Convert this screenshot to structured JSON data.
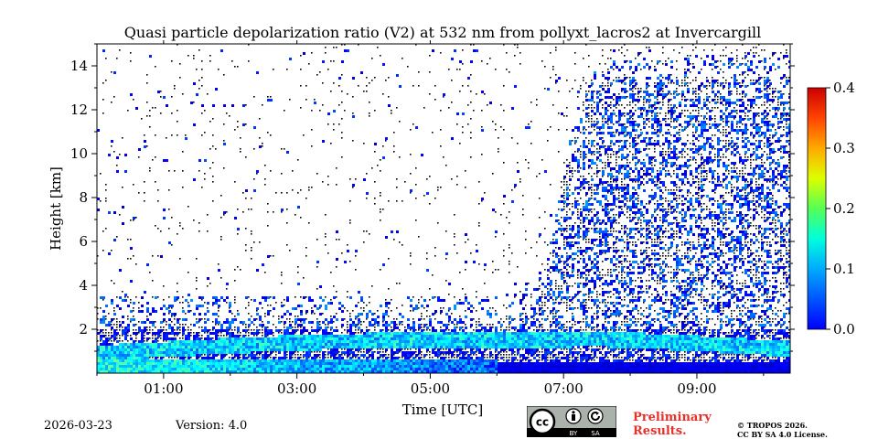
{
  "footer": {
    "date": "2026-03-23",
    "version": "Version: 4.0",
    "preliminary_line1": "Preliminary",
    "preliminary_line2": "Results.",
    "copyright_line1": "© TROPOS 2026.",
    "copyright_line2": "CC BY SA 4.0 License.",
    "cc_label_by": "BY",
    "cc_label_sa": "SA",
    "cc_label_cc": "cc"
  },
  "chart_data": {
    "type": "heatmap",
    "title": "Quasi particle depolarization ratio (V2) at 532 nm from pollyxt_lacros2 at Invercargill",
    "xlabel": "Time [UTC]",
    "ylabel": "Height [km]",
    "xlim": [
      0.0,
      10.4
    ],
    "ylim": [
      0.0,
      15.0
    ],
    "xticks": [
      1,
      3,
      5,
      7,
      9
    ],
    "xtick_labels": [
      "01:00",
      "03:00",
      "05:00",
      "07:00",
      "09:00"
    ],
    "yticks": [
      2,
      4,
      6,
      8,
      10,
      12,
      14
    ],
    "ytick_labels": [
      "2",
      "4",
      "6",
      "8",
      "10",
      "12",
      "14"
    ],
    "colorbar": {
      "range": [
        0.0,
        0.4
      ],
      "ticks": [
        0.0,
        0.1,
        0.2,
        0.3,
        0.4
      ],
      "tick_labels": [
        "0.0",
        "0.1",
        "0.2",
        "0.3",
        "0.4"
      ],
      "colormap": "jet"
    },
    "features": {
      "surface_layer_top_km": 0.6,
      "aerosol_layer_top_km_early": 3.5,
      "aerosol_layer_top_km_late": 14.5,
      "transition_time_utc": 7.0,
      "bright_layer_peak_value": 0.2,
      "background_value": 0.03
    }
  },
  "colors": {
    "noise": "#000000",
    "low": "#0000ff",
    "mid": "#00aaff",
    "high": "#ff0000",
    "preliminary": "#e8302a"
  },
  "icons": {
    "cc": "creative-commons-icon",
    "by": "attribution-person-icon",
    "sa": "share-alike-icon"
  }
}
